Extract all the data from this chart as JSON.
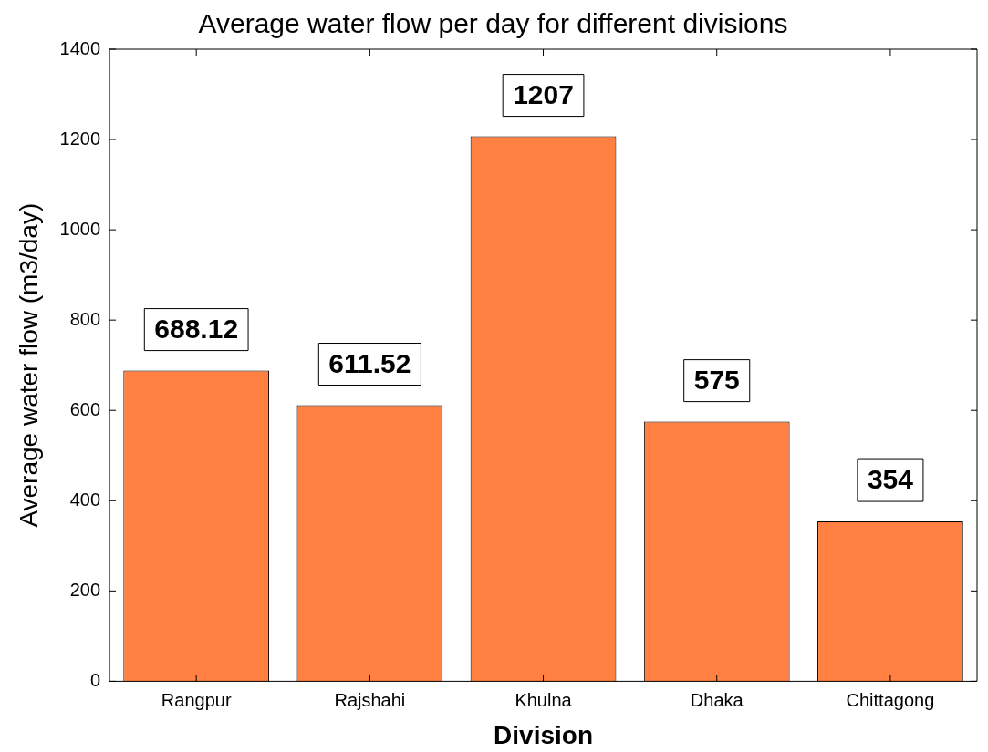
{
  "chart_data": {
    "type": "bar",
    "title": "Average water flow per day for different divisions",
    "xlabel": "Division",
    "ylabel": "Average water flow (m3/day)",
    "categories": [
      "Rangpur",
      "Rajshahi",
      "Khulna",
      "Dhaka",
      "Chittagong"
    ],
    "values": [
      688.12,
      611.52,
      1207,
      575,
      354
    ],
    "color": "#ff8040",
    "ylim": [
      0,
      1400
    ],
    "yticks": [
      0,
      200,
      400,
      600,
      800,
      1000,
      1200,
      1400
    ],
    "grid": false,
    "legend": false,
    "data_labels": true
  }
}
